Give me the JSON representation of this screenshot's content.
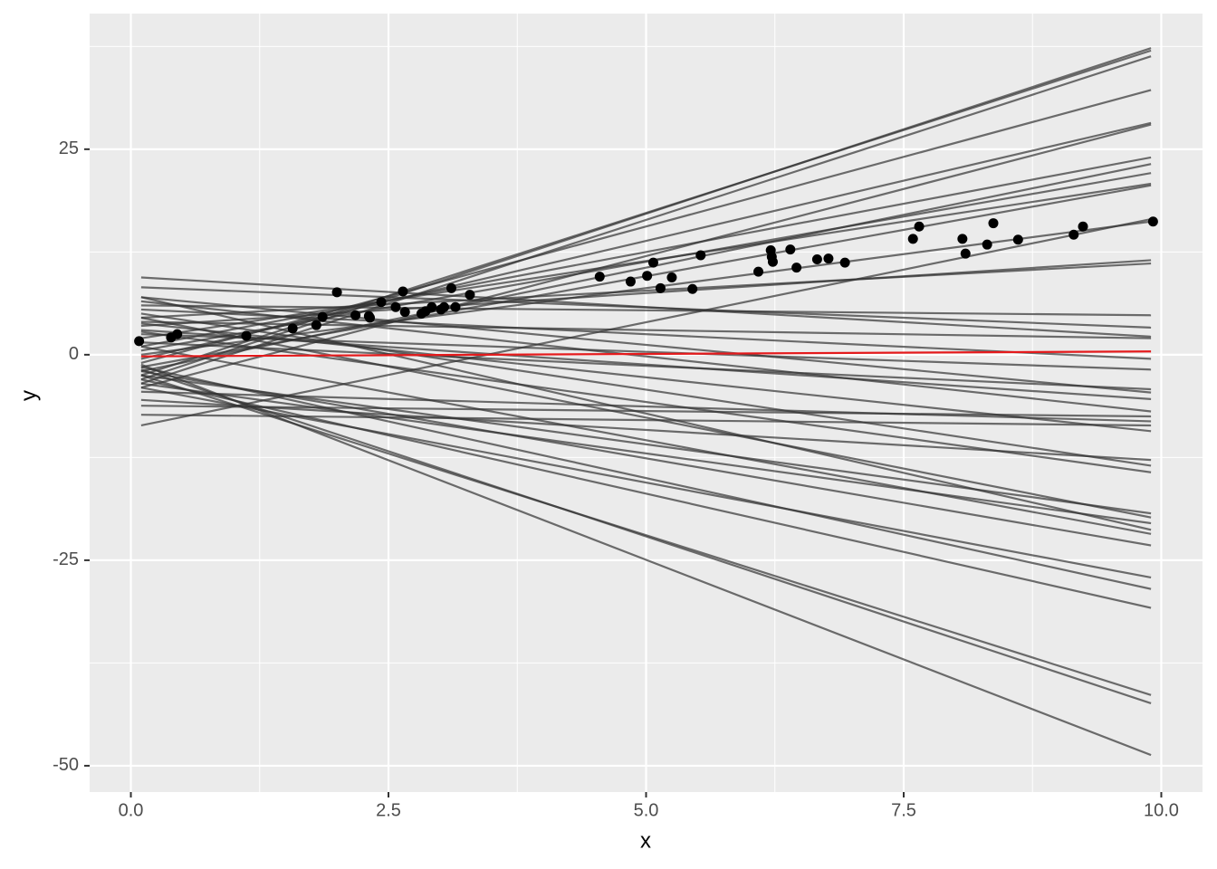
{
  "chart_data": {
    "type": "scatter",
    "x_label": "x",
    "y_label": "y",
    "xlim": [
      -0.4,
      10.4
    ],
    "ylim": [
      -53.2,
      41.5
    ],
    "xticks": [
      {
        "value": 0,
        "label": "0.0"
      },
      2.5,
      {
        "value": 5,
        "label": "5.0"
      },
      7.5,
      {
        "value": 10,
        "label": "10.0"
      }
    ],
    "yticks": [
      -50,
      -25,
      0,
      25
    ],
    "xminor": [
      1.25,
      3.75,
      6.25,
      8.75
    ],
    "yminor": [
      -37.5,
      -12.5,
      12.5,
      37.5
    ],
    "grid": true,
    "point_color": "#000000",
    "points": {
      "x": [
        0.08,
        0.39,
        0.45,
        1.12,
        1.57,
        1.8,
        1.86,
        2.0,
        2.18,
        2.31,
        2.32,
        2.43,
        2.57,
        2.64,
        2.66,
        2.82,
        2.86,
        2.92,
        3.01,
        3.04,
        3.11,
        3.15,
        3.29,
        4.55,
        4.85,
        5.01,
        5.07,
        5.14,
        5.25,
        5.45,
        5.53,
        6.09,
        6.21,
        6.22,
        6.23,
        6.4,
        6.46,
        6.66,
        6.77,
        6.93,
        7.59,
        7.65,
        8.07,
        8.1,
        8.31,
        8.37,
        8.61,
        9.15,
        9.24,
        9.92
      ],
      "y": [
        1.65,
        2.1,
        2.5,
        2.3,
        3.2,
        3.6,
        4.6,
        7.6,
        4.8,
        4.7,
        4.5,
        6.4,
        5.8,
        7.7,
        5.2,
        5.0,
        5.3,
        5.8,
        5.5,
        5.8,
        8.1,
        5.8,
        7.3,
        9.5,
        8.9,
        9.6,
        11.2,
        8.1,
        9.4,
        8.0,
        12.1,
        10.1,
        12.7,
        11.9,
        11.3,
        12.8,
        10.6,
        11.6,
        11.7,
        11.2,
        14.1,
        15.6,
        14.1,
        12.3,
        13.4,
        16.0,
        14.0,
        14.6,
        15.6,
        16.2
      ]
    },
    "line_x": [
      0.1,
      9.9
    ],
    "line_color": "#333333",
    "line_alpha": 0.7,
    "series": [
      {
        "values": [
          -3.0,
          37.3
        ]
      },
      {
        "values": [
          -2.5,
          37.0
        ]
      },
      {
        "values": [
          -3.5,
          36.3
        ]
      },
      {
        "values": [
          -1.0,
          32.2
        ]
      },
      {
        "values": [
          -0.5,
          28.2
        ]
      },
      {
        "values": [
          -4.0,
          28.0
        ]
      },
      {
        "values": [
          1.0,
          24.0
        ]
      },
      {
        "values": [
          -2.0,
          23.2
        ]
      },
      {
        "values": [
          0.5,
          22.1
        ]
      },
      {
        "values": [
          2.0,
          20.8
        ]
      },
      {
        "values": [
          -1.5,
          20.6
        ]
      },
      {
        "values": [
          -8.6,
          16.5
        ]
      },
      {
        "values": [
          0.0,
          16.2
        ]
      },
      {
        "values": [
          3.5,
          11.5
        ]
      },
      {
        "values": [
          4.5,
          11.1
        ]
      },
      {
        "values": [
          6.0,
          4.8
        ]
      },
      {
        "values": [
          8.2,
          3.3
        ]
      },
      {
        "values": [
          9.4,
          2.2
        ]
      },
      {
        "values": [
          4.0,
          2.0
        ]
      },
      {
        "values": [
          5.5,
          -0.5
        ]
      },
      {
        "values": [
          2.5,
          -1.8
        ]
      },
      {
        "values": [
          1.5,
          -4.2
        ]
      },
      {
        "values": [
          7.0,
          -4.6
        ]
      },
      {
        "values": [
          3.0,
          -5.4
        ]
      },
      {
        "values": [
          6.5,
          -6.9
        ]
      },
      {
        "values": [
          -6.2,
          -7.5
        ]
      },
      {
        "values": [
          -4.5,
          -8.1
        ]
      },
      {
        "values": [
          -7.3,
          -8.6
        ]
      },
      {
        "values": [
          3.8,
          -9.3
        ]
      },
      {
        "values": [
          -5.5,
          -12.8
        ]
      },
      {
        "values": [
          5.0,
          -13.5
        ]
      },
      {
        "values": [
          2.8,
          -14.3
        ]
      },
      {
        "values": [
          -2.5,
          -19.3
        ]
      },
      {
        "values": [
          4.5,
          -19.8
        ]
      },
      {
        "values": [
          -3.5,
          -20.5
        ]
      },
      {
        "values": [
          7.0,
          -21.3
        ]
      },
      {
        "values": [
          1.0,
          -21.8
        ]
      },
      {
        "values": [
          -2.0,
          -23.2
        ]
      },
      {
        "values": [
          -4.0,
          -27.1
        ]
      },
      {
        "values": [
          -1.5,
          -28.5
        ]
      },
      {
        "values": [
          -3.0,
          -30.8
        ]
      },
      {
        "values": [
          -2.5,
          -41.4
        ]
      },
      {
        "values": [
          -1.8,
          -42.4
        ]
      },
      {
        "values": [
          -1.2,
          -48.7
        ]
      }
    ],
    "fit": {
      "color": "#e41a1c",
      "values": [
        -0.2,
        0.4
      ]
    }
  }
}
